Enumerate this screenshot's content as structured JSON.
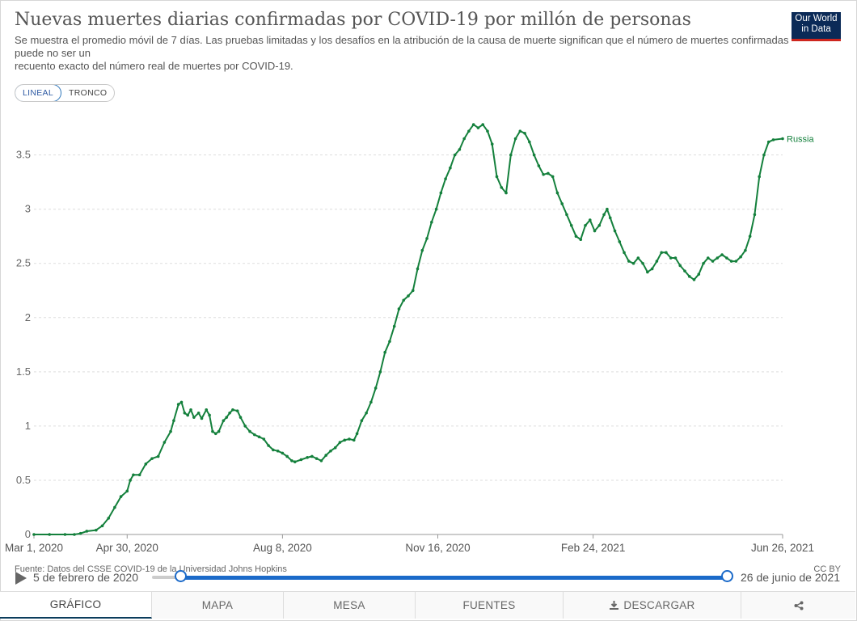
{
  "header": {
    "title": "Nuevas muertes diarias confirmadas por COVID-19 por millón de personas",
    "subtitle_line1": "Se muestra el promedio móvil de 7 días. Las pruebas limitadas y los desafíos en la atribución de la causa de muerte significan que el número de muertes confirmadas puede no ser un",
    "subtitle_line2": "recuento exacto del número real de muertes por COVID-19."
  },
  "logo": {
    "line1": "Our World",
    "line2": "in Data"
  },
  "scale_toggle": {
    "linear": "LINEAL",
    "log": "TRONCO",
    "active": "linear"
  },
  "colors": {
    "series": "#14803c",
    "accent": "#1b6ac9",
    "grid": "#dddddd"
  },
  "chart_data": {
    "type": "line",
    "title": "Nuevas muertes diarias confirmadas por COVID-19 por millón de personas",
    "x_unit": "days since Mar 1, 2020",
    "xlim": [
      0,
      482
    ],
    "ylim": [
      0,
      3.9
    ],
    "ylabel": "",
    "yticks": [
      0,
      0.5,
      1,
      1.5,
      2,
      2.5,
      3,
      3.5
    ],
    "ytick_labels": [
      "0",
      "0.5",
      "1",
      "1.5",
      "2",
      "2.5",
      "3",
      "3.5"
    ],
    "xticks": [
      0,
      60,
      160,
      260,
      360,
      482
    ],
    "xtick_labels": [
      "Mar 1, 2020",
      "Apr 30, 2020",
      "Aug 8, 2020",
      "Nov 16, 2020",
      "Feb 24, 2021",
      "Jun 26, 2021"
    ],
    "grid": true,
    "series": [
      {
        "name": "Russia",
        "label": "Russia",
        "points": [
          [
            0,
            0
          ],
          [
            10,
            0
          ],
          [
            20,
            0
          ],
          [
            26,
            0
          ],
          [
            30,
            0.01
          ],
          [
            34,
            0.03
          ],
          [
            40,
            0.04
          ],
          [
            44,
            0.08
          ],
          [
            48,
            0.15
          ],
          [
            52,
            0.25
          ],
          [
            56,
            0.35
          ],
          [
            60,
            0.4
          ],
          [
            62,
            0.5
          ],
          [
            64,
            0.55
          ],
          [
            68,
            0.55
          ],
          [
            72,
            0.65
          ],
          [
            76,
            0.7
          ],
          [
            80,
            0.72
          ],
          [
            84,
            0.85
          ],
          [
            88,
            0.95
          ],
          [
            90,
            1.05
          ],
          [
            93,
            1.2
          ],
          [
            95,
            1.22
          ],
          [
            97,
            1.12
          ],
          [
            99,
            1.1
          ],
          [
            101,
            1.15
          ],
          [
            103,
            1.08
          ],
          [
            106,
            1.12
          ],
          [
            108,
            1.07
          ],
          [
            111,
            1.15
          ],
          [
            113,
            1.1
          ],
          [
            115,
            0.95
          ],
          [
            117,
            0.93
          ],
          [
            119,
            0.95
          ],
          [
            122,
            1.05
          ],
          [
            124,
            1.08
          ],
          [
            126,
            1.12
          ],
          [
            128,
            1.15
          ],
          [
            131,
            1.14
          ],
          [
            133,
            1.08
          ],
          [
            136,
            1
          ],
          [
            139,
            0.95
          ],
          [
            142,
            0.92
          ],
          [
            145,
            0.9
          ],
          [
            148,
            0.88
          ],
          [
            151,
            0.82
          ],
          [
            154,
            0.78
          ],
          [
            157,
            0.77
          ],
          [
            160,
            0.75
          ],
          [
            163,
            0.72
          ],
          [
            166,
            0.68
          ],
          [
            168,
            0.67
          ],
          [
            172,
            0.69
          ],
          [
            176,
            0.71
          ],
          [
            179,
            0.72
          ],
          [
            182,
            0.7
          ],
          [
            185,
            0.68
          ],
          [
            188,
            0.73
          ],
          [
            191,
            0.77
          ],
          [
            194,
            0.8
          ],
          [
            197,
            0.85
          ],
          [
            200,
            0.87
          ],
          [
            203,
            0.88
          ],
          [
            206,
            0.87
          ],
          [
            208,
            0.93
          ],
          [
            211,
            1.05
          ],
          [
            214,
            1.12
          ],
          [
            217,
            1.22
          ],
          [
            220,
            1.35
          ],
          [
            223,
            1.5
          ],
          [
            226,
            1.68
          ],
          [
            229,
            1.78
          ],
          [
            232,
            1.92
          ],
          [
            235,
            2.08
          ],
          [
            238,
            2.16
          ],
          [
            241,
            2.2
          ],
          [
            244,
            2.25
          ],
          [
            247,
            2.45
          ],
          [
            250,
            2.62
          ],
          [
            253,
            2.73
          ],
          [
            256,
            2.88
          ],
          [
            259,
            3
          ],
          [
            262,
            3.15
          ],
          [
            265,
            3.28
          ],
          [
            268,
            3.38
          ],
          [
            271,
            3.5
          ],
          [
            274,
            3.55
          ],
          [
            277,
            3.65
          ],
          [
            280,
            3.72
          ],
          [
            283,
            3.78
          ],
          [
            286,
            3.75
          ],
          [
            289,
            3.78
          ],
          [
            292,
            3.72
          ],
          [
            295,
            3.6
          ],
          [
            298,
            3.3
          ],
          [
            301,
            3.2
          ],
          [
            304,
            3.15
          ],
          [
            307,
            3.5
          ],
          [
            310,
            3.65
          ],
          [
            313,
            3.72
          ],
          [
            316,
            3.7
          ],
          [
            319,
            3.62
          ],
          [
            322,
            3.5
          ],
          [
            325,
            3.4
          ],
          [
            328,
            3.32
          ],
          [
            331,
            3.33
          ],
          [
            334,
            3.3
          ],
          [
            337,
            3.15
          ],
          [
            340,
            3.05
          ],
          [
            343,
            2.95
          ],
          [
            346,
            2.85
          ],
          [
            349,
            2.75
          ],
          [
            352,
            2.72
          ],
          [
            355,
            2.85
          ],
          [
            358,
            2.9
          ],
          [
            361,
            2.8
          ],
          [
            364,
            2.85
          ],
          [
            367,
            2.95
          ],
          [
            369,
            3
          ],
          [
            371,
            2.92
          ],
          [
            374,
            2.8
          ],
          [
            377,
            2.7
          ],
          [
            380,
            2.6
          ],
          [
            383,
            2.52
          ],
          [
            386,
            2.5
          ],
          [
            389,
            2.55
          ],
          [
            392,
            2.5
          ],
          [
            395,
            2.42
          ],
          [
            398,
            2.45
          ],
          [
            401,
            2.52
          ],
          [
            404,
            2.6
          ],
          [
            407,
            2.6
          ],
          [
            410,
            2.55
          ],
          [
            413,
            2.55
          ],
          [
            416,
            2.48
          ],
          [
            419,
            2.43
          ],
          [
            422,
            2.38
          ],
          [
            425,
            2.35
          ],
          [
            428,
            2.4
          ],
          [
            431,
            2.5
          ],
          [
            434,
            2.55
          ],
          [
            437,
            2.52
          ],
          [
            440,
            2.55
          ],
          [
            443,
            2.58
          ],
          [
            446,
            2.55
          ],
          [
            449,
            2.52
          ],
          [
            452,
            2.52
          ],
          [
            455,
            2.56
          ],
          [
            458,
            2.62
          ],
          [
            461,
            2.75
          ],
          [
            464,
            2.95
          ],
          [
            467,
            3.3
          ],
          [
            470,
            3.5
          ],
          [
            473,
            3.62
          ],
          [
            476,
            3.64
          ],
          [
            482,
            3.65
          ]
        ]
      }
    ]
  },
  "footer": {
    "source": "Fuente: Datos del CSSE COVID-19 de la Universidad Johns Hopkins",
    "license": "CC BY"
  },
  "timeline": {
    "start_label": "5 de febrero de 2020",
    "end_label": "26 de junio de 2021",
    "selection_start_pct": 5,
    "selection_end_pct": 100
  },
  "tabs": [
    {
      "label": "GRÁFICO",
      "icon": ""
    },
    {
      "label": "MAPA",
      "icon": ""
    },
    {
      "label": "MESA",
      "icon": ""
    },
    {
      "label": "FUENTES",
      "icon": ""
    },
    {
      "label": "DESCARGAR",
      "icon": "download-icon"
    },
    {
      "label": "",
      "icon": "share-icon"
    }
  ]
}
